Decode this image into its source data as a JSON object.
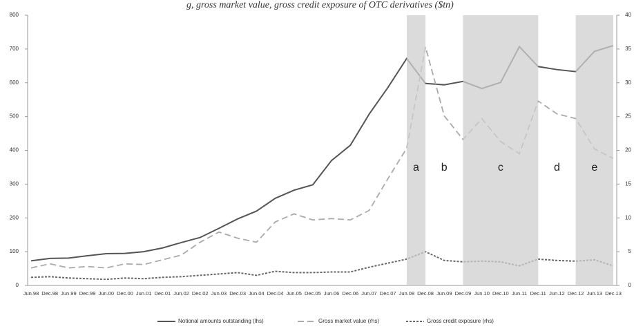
{
  "chart_data": {
    "type": "line",
    "title": "g, gross market value, gross credit exposure of OTC derivatives ($tn)",
    "categories": [
      "Jun.98",
      "Dec.98",
      "Jun.99",
      "Dec.99",
      "Jun.00",
      "Dec.00",
      "Jun.01",
      "Dec.01",
      "Jun.02",
      "Dec.02",
      "Jun.03",
      "Dec.03",
      "Jun.04",
      "Dec.04",
      "Jun.05",
      "Dec.05",
      "Jun.06",
      "Dec.06",
      "Jun.07",
      "Dec.07",
      "Jun.08",
      "Dec.08",
      "Jun.09",
      "Dec.09",
      "Jun.10",
      "Dec.10",
      "Jun.11",
      "Dec.11",
      "Jun.12",
      "Dec.12",
      "Jun.13",
      "Dec.13"
    ],
    "series": [
      {
        "name": "Notional amounts outstanding (lhs)",
        "color": "#555555",
        "style": "solid",
        "values": [
          73,
          80,
          81,
          88,
          94,
          95,
          100,
          111,
          127,
          142,
          169,
          197,
          220,
          258,
          282,
          298,
          370,
          415,
          507,
          586,
          672,
          598,
          594,
          604,
          583,
          601,
          707,
          648,
          639,
          633,
          693,
          710
        ]
      },
      {
        "name": "Gross market value (rhs)",
        "color": "#aaaaaa",
        "style": "long-dash",
        "axis": "y2",
        "values": [
          2.6,
          3.2,
          2.6,
          2.8,
          2.6,
          3.2,
          3.1,
          3.8,
          4.5,
          6.4,
          7.9,
          7.0,
          6.4,
          9.4,
          10.6,
          9.7,
          9.9,
          9.7,
          11.1,
          15.8,
          20.3,
          35.3,
          25.1,
          21.6,
          24.7,
          21.3,
          19.5,
          27.3,
          25.4,
          24.7,
          20.2,
          18.8
        ]
      },
      {
        "name": "Gross credit exposure (rhs)",
        "color": "#666666",
        "style": "short-dash",
        "axis": "y2",
        "values": [
          1.2,
          1.3,
          1.1,
          1.0,
          0.9,
          1.1,
          1.0,
          1.2,
          1.3,
          1.5,
          1.7,
          1.9,
          1.5,
          2.1,
          1.9,
          1.9,
          2.0,
          2.0,
          2.7,
          3.3,
          3.9,
          5.0,
          3.7,
          3.5,
          3.6,
          3.5,
          2.9,
          3.9,
          3.7,
          3.6,
          3.8,
          2.9
        ]
      }
    ],
    "ylim": [
      0,
      800
    ],
    "yticks": [
      0,
      100,
      200,
      300,
      400,
      500,
      600,
      700,
      800
    ],
    "y2lim": [
      0,
      40
    ],
    "y2ticks": [
      0,
      5,
      10,
      15,
      20,
      25,
      30,
      35,
      40
    ],
    "phases": [
      {
        "label": "a",
        "start": "Jun.08",
        "end": "Dec.08",
        "shaded": true
      },
      {
        "label": "b",
        "start": "Dec.08",
        "end": "Dec.09",
        "shaded": false
      },
      {
        "label": "c",
        "start": "Dec.09",
        "end": "Dec.11",
        "shaded": true
      },
      {
        "label": "d",
        "start": "Dec.11",
        "end": "Dec.12",
        "shaded": false
      },
      {
        "label": "e",
        "start": "Dec.12",
        "end": "Dec.13",
        "shaded": true
      }
    ],
    "legend": "bottom"
  }
}
